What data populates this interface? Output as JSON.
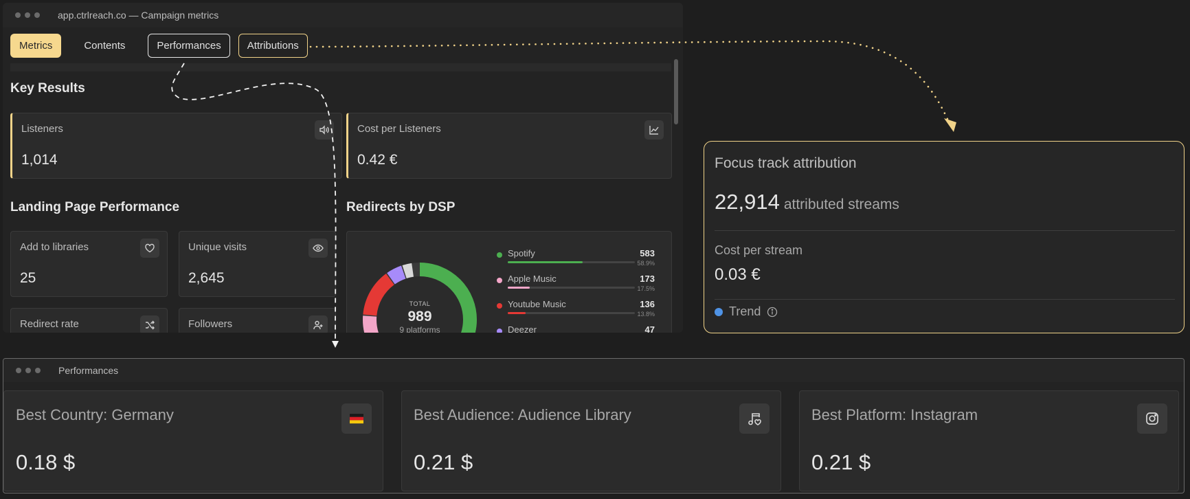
{
  "main_window": {
    "title": "app.ctrlreach.co — Campaign metrics",
    "tabs": [
      {
        "label": "Metrics"
      },
      {
        "label": "Contents"
      },
      {
        "label": "Performances"
      },
      {
        "label": "Attributions"
      }
    ],
    "key_results": {
      "title": "Key Results",
      "cards": [
        {
          "label": "Listeners",
          "value": "1,014",
          "icon": "speaker-icon"
        },
        {
          "label": "Cost per Listeners",
          "value": "0.42 €",
          "icon": "line-chart-icon"
        }
      ]
    },
    "landing": {
      "title": "Landing Page Performance",
      "cards": [
        {
          "label": "Add to libraries",
          "value": "25",
          "icon": "heart-icon"
        },
        {
          "label": "Unique visits",
          "value": "2,645",
          "icon": "eye-icon"
        },
        {
          "label": "Redirect rate",
          "value": "",
          "icon": "shuffle-icon"
        },
        {
          "label": "Followers",
          "value": "",
          "icon": "user-plus-icon"
        }
      ]
    },
    "dsp": {
      "title": "Redirects by DSP",
      "total_label": "TOTAL",
      "total_value": "989",
      "platforms_label": "9 platforms",
      "rows": [
        {
          "name": "Spotify",
          "count": "583",
          "pct": "58.9%",
          "fraction": 0.589,
          "color": "#4caf50"
        },
        {
          "name": "Apple Music",
          "count": "173",
          "pct": "17.5%",
          "fraction": 0.175,
          "color": "#f3a6c8"
        },
        {
          "name": "Youtube Music",
          "count": "136",
          "pct": "13.8%",
          "fraction": 0.138,
          "color": "#e53935"
        },
        {
          "name": "Deezer",
          "count": "47",
          "pct": "",
          "fraction": 0.048,
          "color": "#a78bfa"
        }
      ]
    }
  },
  "attribution": {
    "title": "Focus track attribution",
    "streams_value": "22,914",
    "streams_label": "attributed streams",
    "cost_label": "Cost per stream",
    "cost_value": "0.03 €",
    "trend_label": "Trend"
  },
  "performances_window": {
    "title": "Performances",
    "cards": [
      {
        "label": "Best Country: Germany",
        "value": "0.18 $",
        "icon": "germany-flag-icon"
      },
      {
        "label": "Best Audience: Audience Library",
        "value": "0.21 $",
        "icon": "music-heart-icon"
      },
      {
        "label": "Best Platform: Instagram",
        "value": "0.21 $",
        "icon": "instagram-icon"
      }
    ]
  },
  "colors": {
    "accent": "#f1d389",
    "trend": "#4f93e6"
  }
}
